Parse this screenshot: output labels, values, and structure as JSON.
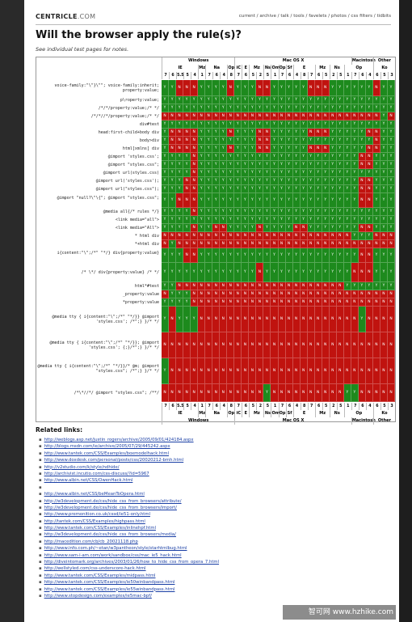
{
  "site": {
    "logo_main": "CENTRICLE",
    "logo_dotcom": ".COM"
  },
  "nav": [
    "current",
    "archive",
    "talk",
    "tools",
    "favelets",
    "photos",
    "css filters",
    "tidbits"
  ],
  "page_title": "Will the browser apply the rule(s)?",
  "subtitle": "See individual test pages for notes.",
  "table": {
    "groups": [
      "Windows",
      "Mac OS X",
      "Macintosh",
      "Other"
    ],
    "browsers": [
      "IE",
      "Mz",
      "Na",
      "Op",
      "iC",
      "E",
      "Mz",
      "Ns",
      "Om",
      "Op",
      "Sf",
      "E",
      "Mz",
      "Ns",
      "Op",
      "Ko"
    ],
    "versions": [
      "7",
      "6",
      "5.5",
      "5",
      "4",
      "1",
      "7",
      "6",
      "4",
      "8",
      "7",
      "6",
      "5",
      "2",
      "5",
      "1",
      "7",
      "6",
      "4",
      "8",
      "7",
      "6",
      "5",
      "2",
      "5",
      "1",
      "7",
      "6",
      "4",
      "6",
      "5",
      "3"
    ],
    "rows": [
      {
        "label": "voice-family:\"\\\"}\\\"\"; voice-family:inherit; property:value;",
        "h": 20
      },
      {
        "label": "p\\roperty:value;",
        "h": 10
      },
      {
        "label": "/*/*/property:value;/* */",
        "h": 10
      },
      {
        "label": "/*/*//*/property:value;/* */",
        "h": 10
      },
      {
        "label": "div#test",
        "h": 10
      },
      {
        "label": "head:first-child+body div",
        "h": 10
      },
      {
        "label": "body>div",
        "h": 10
      },
      {
        "label": "html[xmlns] div",
        "h": 10
      },
      {
        "label": "@import 'styles.css';",
        "h": 10
      },
      {
        "label": "@import \"styles.css\";",
        "h": 10
      },
      {
        "label": "@import url(styles.css)",
        "h": 10
      },
      {
        "label": "@import url('styles.css');",
        "h": 10
      },
      {
        "label": "@import url(\"styles.css\");",
        "h": 10
      },
      {
        "label": "@import \"null?\\\"\\{\"; @import \"styles.css\";",
        "h": 18
      },
      {
        "label": "@media all{/* rules */}",
        "h": 10
      },
      {
        "label": "<link media=\"all\">",
        "h": 10
      },
      {
        "label": "<link media=\"All\">",
        "h": 10
      },
      {
        "label": "* html div",
        "h": 10
      },
      {
        "label": "*+html div",
        "h": 10
      },
      {
        "label": "i{content:\"\\\";/*\" \"*/} div{property:value}",
        "h": 18
      },
      {
        "label": "/* \\*/ div{property:value} /* */",
        "h": 24
      },
      {
        "label": "html*#test",
        "h": 10
      },
      {
        "label": "_property:value",
        "h": 10
      },
      {
        "label": "*property:value",
        "h": 10
      },
      {
        "label": "@media tty { i{content:\"\\\";/*\" \"*/}} @import 'styles.css'; /*\";} }/* */",
        "h": 32
      },
      {
        "label": "@media tty { i{content:\"\\\";/*\" \"*/}}; @import 'styles.css'; {;}/*\";} }/* */",
        "h": 32
      },
      {
        "label": "@media tty { i{content:\"\\\";/*\" \"*/}}/* @m; @import \"styles.css\"; /*\";} }/* */",
        "h": 32
      },
      {
        "label": "/*\\*//*/ @import \"styles.css\"; /**/",
        "h": 22
      }
    ],
    "cells": [
      "YYNNNYYYYNYYYNNYYYYYNNNYYYYYYNYY",
      "YYYYYYYYYYYYYYYYYYYYYYYYYYYYYYYY",
      "YYYYYYYYYYYYYYYYYYYYYYYYYYYYYYYY",
      "NNNNNNNNNNNNNNNNNNNNNNNNNNNNNNYN",
      "YYYYYYYYYYYYYYYYYYYYYYYYYYYYYYYY",
      "YNNNNYYYYNYYYNNYYYYYNNNYYYYYNNYY",
      "YNNNNYYYYYYYYNNYYYYYYYYYYYYYYNYY",
      "YNNNNYYYYNYYYNNYYYYYNNNYYYYYNNYY",
      "YYYYNYYYYYYYYYYYYYYYYYYYYYYNNYYY",
      "YYYYNYYYYYYYYYYYYYYYYYYYYYYNNYYY",
      "YYYYNYYYYYYYYYYYYYYYYYYYYYYYYYYY",
      "YYYNNYYYYYYYYYYYYYYYYYYYYYYNNYYY",
      "YYYNNYYYYYYYYYYYYYYYYYYYYYYNNYYY",
      "YYNNNYYYYYYYYYYYYYYYYYYYYYYNNYYY",
      "YYYYNYYYYYYYYYYYYYYYYYYYYYYYYYYY",
      "YYYYYYYYYYYYYYYYYYYYYYYYYYYYYYYY",
      "YYYYNYYNNYYYYNYYYYNNYYYYYYYNNYYY",
      "NNNNNNNNNNNNNNNNNNNNNNNNNNYYYNNN",
      "NYNNNNNNNNNNNNNNNNNNNNNNNNNNNNNN",
      "YYYNNYYYYYYYYYYYYYYYYYYYYYYNNYYY",
      "YYYYYYYYYYYYYNYYYYYYYYYYYYNNNYYY",
      "YYNNNNNNNNNNNNNNNNNNNNNNNYYYYYYY",
      "NYYYNNNNNNNNNNNNNNNNNNNNNNNNNNNN",
      "YYYYNNNNNNNNNNNNNNNNNNNNNNNNNNNN",
      "YNYYYNNNNNNNNNNNNNNNNNNNNNNYNNNN",
      "NNNNNNNNNNNNNNNNNNNNNNNNNNNNNNNN",
      "YNNNNNNNNNNNNNNNNNNNNNNNNNNNNNNN",
      "NNNNNNNNNNNNNNYNNNNNNNNNNYYNNNNN"
    ]
  },
  "related_heading": "Related links:",
  "links": [
    "http://weblogs.asp.net/justin_rogers/archive/2005/09/01/424184.aspx",
    "http://blogs.msdn.com/ie/archive/2005/07/29/445242.aspx",
    "http://www.tantek.com/CSS/Examples/boxmodelhack.html",
    "http://www.doxdesk.com/personal/posts/css/20020212-bmh.html",
    "http://v2studio.com/k/style/ndhide/",
    "http://archivist.incutio.com/css-discuss/?id=5967",
    "http://www.albin.net/CSS/OwenHack.html",
    "",
    "http://www.albin.net/CSS/beMeanToOpera.html",
    "http://w3development.de/css/hide_css_from_browsers/attribute/",
    "http://w3development.de/css/hide_css_from_browsers/import/",
    "http://www.premonition.co.uk/cssd/ie51-only.html",
    "http://tantek.com/CSS/Examples/highpass.html",
    "http://www.tantek.com/CSS/Examples/inlinehpf.html",
    "http://w3development.de/css/hide_css_from_browsers/media/",
    "http://macedition.com/cb/cb_20021118.php",
    "http://www.info.com.ph/~etan/w3pantheon/style/starhtmlbug.html",
    "http://www.sam-i-am.com/work/sandbox/css/mac_ie5_hack.html",
    "http://diveintomark.org/archives/2003/01/26/how_to_hide_css_from_opera_7.html",
    "http://wellstyled.com/css-underscore-hack.html",
    "http://www.tantek.com/CSS/Examples/midpass.html",
    "http://www.tantek.com/CSS/Examples/ie50winbandpass.html",
    "http://www.tantek.com/CSS/Examples/ie55winbandpass.html",
    "http://www.stopdesign.com/examples/ie5mac-bpf/"
  ],
  "watermark": "智可网 www.hzhike.com"
}
